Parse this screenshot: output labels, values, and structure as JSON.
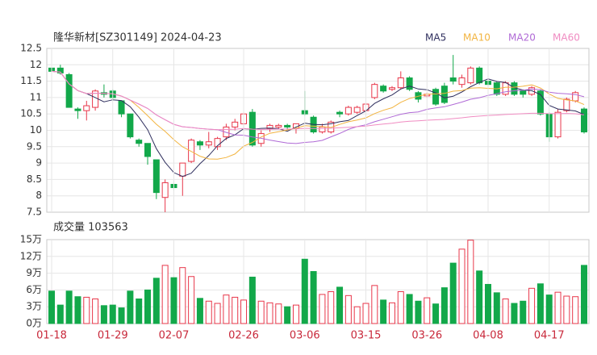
{
  "chart_data": [
    {
      "type": "candlestick",
      "title": "隆华新材[SZ301149] 2024-04-23",
      "up_color": "#e8374a",
      "down_color": "#12a84a",
      "open": [
        11.9,
        11.9,
        11.7,
        10.65,
        10.6,
        10.7,
        11.15,
        11.2,
        10.9,
        10.5,
        9.7,
        9.6,
        9.1,
        7.95,
        8.35,
        8.6,
        9.05,
        9.65,
        9.55,
        9.5,
        9.8,
        10.1,
        10.2,
        10.55,
        9.6,
        10.05,
        10.1,
        10.15,
        10.05,
        10.6,
        10.4,
        9.95,
        9.95,
        10.55,
        10.5,
        10.55,
        10.6,
        11.0,
        11.35,
        11.25,
        11.3,
        11.6,
        11.15,
        11.05,
        11.25,
        11.35,
        11.6,
        11.4,
        11.45,
        11.9,
        11.5,
        11.45,
        11.1,
        11.45,
        11.2,
        11.1,
        11.2,
        10.5,
        9.8,
        10.6,
        10.9,
        10.65
      ],
      "high": [
        12.0,
        12.0,
        11.75,
        10.7,
        10.9,
        11.25,
        11.4,
        11.25,
        10.9,
        10.5,
        9.75,
        9.6,
        9.1,
        8.5,
        8.45,
        9.0,
        9.75,
        9.7,
        9.95,
        9.8,
        10.2,
        10.35,
        10.55,
        10.65,
        10.0,
        10.2,
        10.2,
        10.2,
        10.2,
        11.2,
        10.45,
        10.2,
        10.3,
        10.6,
        10.75,
        10.75,
        10.85,
        11.45,
        11.4,
        11.35,
        11.8,
        11.65,
        11.2,
        11.15,
        11.3,
        11.45,
        12.3,
        11.7,
        11.95,
        11.95,
        11.55,
        11.5,
        11.5,
        11.5,
        11.25,
        11.35,
        11.25,
        10.55,
        10.65,
        11.0,
        11.2,
        10.7
      ],
      "low": [
        11.5,
        11.7,
        10.7,
        10.35,
        10.3,
        10.6,
        11.0,
        10.9,
        10.4,
        9.75,
        9.5,
        8.95,
        7.9,
        7.5,
        8.15,
        8.0,
        9.0,
        9.4,
        9.45,
        9.4,
        9.7,
        10.0,
        10.0,
        9.5,
        9.5,
        9.95,
        10.05,
        10.0,
        9.9,
        10.45,
        9.9,
        9.9,
        9.9,
        10.4,
        10.45,
        10.5,
        10.5,
        10.95,
        11.15,
        11.2,
        11.25,
        11.2,
        10.85,
        11.0,
        10.75,
        10.8,
        11.4,
        11.3,
        11.4,
        11.4,
        11.3,
        11.05,
        11.05,
        11.05,
        11.0,
        11.05,
        10.45,
        9.65,
        9.75,
        10.55,
        10.85,
        9.9
      ],
      "close": [
        11.8,
        11.75,
        10.7,
        10.6,
        10.75,
        11.2,
        11.1,
        11.0,
        10.5,
        9.8,
        9.6,
        9.2,
        8.1,
        8.4,
        8.25,
        9.0,
        9.7,
        9.55,
        9.65,
        9.75,
        10.1,
        10.25,
        10.5,
        9.55,
        9.9,
        10.15,
        10.15,
        10.1,
        10.2,
        10.5,
        9.95,
        10.1,
        10.25,
        10.5,
        10.7,
        10.7,
        10.8,
        11.4,
        11.2,
        11.3,
        11.6,
        11.25,
        10.95,
        11.1,
        10.8,
        10.85,
        11.5,
        11.6,
        11.9,
        11.45,
        11.4,
        11.1,
        11.45,
        11.1,
        11.1,
        11.3,
        10.5,
        9.8,
        10.55,
        10.95,
        11.15,
        9.95
      ],
      "series": [
        {
          "name": "MA5",
          "color": "#2f2f5e"
        },
        {
          "name": "MA10",
          "color": "#f2b440"
        },
        {
          "name": "MA20",
          "color": "#b06ad6"
        },
        {
          "name": "MA60",
          "color": "#f08cc2"
        }
      ],
      "ylim": [
        7.5,
        12.5
      ],
      "yticks": [
        7.5,
        8,
        8.5,
        9,
        9.5,
        10,
        10.5,
        11,
        11.5,
        12,
        12.5
      ],
      "grid": true
    },
    {
      "type": "bar",
      "title": "成交量 103563",
      "categories": [
        "01-18",
        null,
        null,
        null,
        null,
        null,
        null,
        "01-29",
        null,
        null,
        null,
        null,
        null,
        null,
        "02-07",
        null,
        null,
        null,
        null,
        null,
        null,
        null,
        "02-26",
        null,
        null,
        null,
        null,
        null,
        null,
        "03-06",
        null,
        null,
        null,
        null,
        null,
        null,
        "03-15",
        null,
        null,
        null,
        null,
        null,
        null,
        "03-26",
        null,
        null,
        null,
        null,
        null,
        null,
        "04-08",
        null,
        null,
        null,
        null,
        null,
        null,
        "04-17",
        null,
        null,
        null,
        null
      ],
      "values": [
        5.8,
        3.3,
        5.8,
        4.8,
        4.7,
        4.4,
        3.2,
        3.3,
        2.8,
        5.8,
        4.4,
        6.0,
        8.1,
        10.4,
        8.2,
        10.0,
        8.4,
        4.5,
        4.0,
        3.6,
        5.1,
        4.7,
        4.2,
        8.3,
        4.0,
        3.7,
        3.5,
        3.0,
        3.3,
        11.5,
        9.3,
        5.2,
        5.7,
        6.5,
        5.0,
        3.0,
        3.6,
        6.8,
        4.2,
        3.7,
        5.7,
        5.2,
        4.0,
        4.6,
        3.5,
        6.4,
        10.8,
        13.3,
        14.9,
        9.4,
        7.0,
        5.5,
        4.4,
        3.6,
        4.0,
        6.3,
        7.1,
        5.1,
        5.6,
        4.9,
        4.8,
        10.4
      ],
      "ylim": [
        0,
        15
      ],
      "yticks": [
        {
          "value": 0,
          "label": "0万"
        },
        {
          "value": 3,
          "label": "3万"
        },
        {
          "value": 6,
          "label": "6万"
        },
        {
          "value": 9,
          "label": "9万"
        },
        {
          "value": 12,
          "label": "12万"
        },
        {
          "value": 15,
          "label": "15万"
        }
      ],
      "grid": true
    }
  ]
}
